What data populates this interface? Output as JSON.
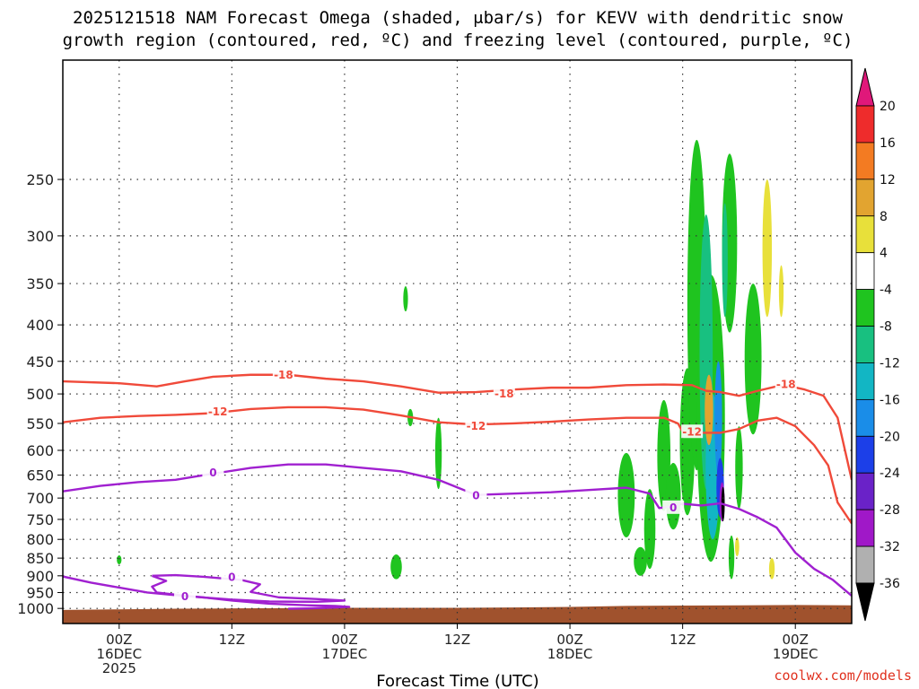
{
  "chart_data": {
    "type": "heatmap",
    "title_lines": [
      "2025121518 NAM Forecast Omega (shaded, μbar/s) for KEVV with dendritic snow",
      "growth region (contoured, red, ºC) and freezing level (contoured, purple, ºC)"
    ],
    "xlabel": "Forecast Time (UTC)",
    "ylabel": "",
    "y_axis": {
      "scale": "log-pressure",
      "inverted": true,
      "ylim": [
        1050,
        170
      ],
      "ticks": [
        250,
        300,
        350,
        400,
        450,
        500,
        550,
        600,
        650,
        700,
        750,
        800,
        850,
        900,
        950,
        1000
      ],
      "tick_labels": [
        "250",
        "300",
        "350",
        "400",
        "450",
        "500",
        "550",
        "600",
        "650",
        "700",
        "750",
        "800",
        "850",
        "900",
        "950",
        "1000"
      ]
    },
    "x_axis": {
      "unit": "hours since 2025121518",
      "xlim": [
        0,
        84
      ],
      "ticks": [
        6,
        18,
        30,
        42,
        54,
        66,
        78
      ],
      "tick_labels": [
        [
          "00Z",
          "16DEC",
          "2025"
        ],
        [
          "12Z"
        ],
        [
          "00Z",
          "17DEC"
        ],
        [
          "12Z"
        ],
        [
          "00Z",
          "18DEC"
        ],
        [
          "12Z"
        ],
        [
          "00Z",
          "19DEC"
        ]
      ]
    },
    "grid": true,
    "colorbar": {
      "labels": [
        "20",
        "16",
        "12",
        "8",
        "4",
        "-4",
        "-8",
        "-12",
        "-16",
        "-20",
        "-24",
        "-28",
        "-32",
        "-36"
      ],
      "bands": [
        {
          "from": 16,
          "to": 20,
          "color": "#ee2c2c"
        },
        {
          "from": 12,
          "to": 16,
          "color": "#f37b22"
        },
        {
          "from": 8,
          "to": 12,
          "color": "#e2a430"
        },
        {
          "from": 4,
          "to": 8,
          "color": "#e8e03a"
        },
        {
          "from": -4,
          "to": 4,
          "color": "#ffffff"
        },
        {
          "from": -8,
          "to": -4,
          "color": "#1fc41f"
        },
        {
          "from": -12,
          "to": -8,
          "color": "#18c080"
        },
        {
          "from": -16,
          "to": -12,
          "color": "#12b6c4"
        },
        {
          "from": -20,
          "to": -16,
          "color": "#1a8de8"
        },
        {
          "from": -24,
          "to": -20,
          "color": "#1c3fe8"
        },
        {
          "from": -28,
          "to": -24,
          "color": "#6a22c8"
        },
        {
          "from": -32,
          "to": -28,
          "color": "#a018c8"
        },
        {
          "from": -36,
          "to": -32,
          "color": "#b0b0b0"
        }
      ],
      "over_color": "#e0187a",
      "under_color": "#000000"
    },
    "series": [
      {
        "name": "-18",
        "color": "#f04a3a",
        "label_points": [
          [
            23.5,
            470
          ],
          [
            47,
            500
          ],
          [
            77,
            485
          ]
        ],
        "points": [
          [
            0,
            480
          ],
          [
            6,
            483
          ],
          [
            10,
            488
          ],
          [
            13,
            480
          ],
          [
            16,
            473
          ],
          [
            20,
            470
          ],
          [
            24,
            470
          ],
          [
            28,
            476
          ],
          [
            32,
            480
          ],
          [
            36,
            488
          ],
          [
            40,
            498
          ],
          [
            44,
            497
          ],
          [
            48,
            493
          ],
          [
            52,
            490
          ],
          [
            56,
            490
          ],
          [
            60,
            486
          ],
          [
            64,
            485
          ],
          [
            67,
            486
          ],
          [
            68.5,
            495
          ],
          [
            70,
            497
          ],
          [
            72,
            503
          ],
          [
            74,
            495
          ],
          [
            76,
            488
          ],
          [
            77.5,
            488
          ],
          [
            79,
            493
          ],
          [
            81,
            503
          ],
          [
            82.5,
            540
          ],
          [
            84,
            660
          ]
        ]
      },
      {
        "name": "-12",
        "color": "#f04a3a",
        "label_points": [
          [
            16.5,
            530
          ],
          [
            44,
            555
          ],
          [
            67,
            565
          ]
        ],
        "points": [
          [
            0,
            548
          ],
          [
            4,
            540
          ],
          [
            8,
            537
          ],
          [
            12,
            535
          ],
          [
            16,
            532
          ],
          [
            20,
            525
          ],
          [
            24,
            522
          ],
          [
            28,
            522
          ],
          [
            32,
            526
          ],
          [
            36,
            536
          ],
          [
            40,
            548
          ],
          [
            44,
            552
          ],
          [
            48,
            550
          ],
          [
            52,
            547
          ],
          [
            56,
            543
          ],
          [
            60,
            540
          ],
          [
            64,
            540
          ],
          [
            65.5,
            550
          ],
          [
            66,
            565
          ],
          [
            68,
            567
          ],
          [
            70,
            567
          ],
          [
            72,
            560
          ],
          [
            74,
            545
          ],
          [
            76,
            540
          ],
          [
            78,
            555
          ],
          [
            80,
            590
          ],
          [
            81.5,
            630
          ],
          [
            82.5,
            710
          ],
          [
            84,
            760
          ]
        ]
      },
      {
        "name": "0",
        "color": "#a020d0",
        "label_points": [
          [
            16,
            645
          ],
          [
            44,
            695
          ],
          [
            65,
            722
          ],
          [
            18,
            905
          ],
          [
            13,
            962
          ]
        ],
        "points": [
          [
            0,
            685
          ],
          [
            4,
            673
          ],
          [
            8,
            665
          ],
          [
            12,
            660
          ],
          [
            16,
            647
          ],
          [
            20,
            635
          ],
          [
            24,
            628
          ],
          [
            28,
            628
          ],
          [
            32,
            635
          ],
          [
            36,
            642
          ],
          [
            40,
            660
          ],
          [
            44,
            693
          ],
          [
            48,
            690
          ],
          [
            52,
            687
          ],
          [
            56,
            682
          ],
          [
            60,
            677
          ],
          [
            62.5,
            690
          ],
          [
            63.5,
            723
          ],
          [
            64.5,
            720
          ],
          [
            66,
            713
          ],
          [
            68,
            717
          ],
          [
            70,
            712
          ],
          [
            72,
            725
          ],
          [
            74,
            745
          ],
          [
            76,
            770
          ],
          [
            78,
            835
          ],
          [
            80,
            880
          ],
          [
            82,
            912
          ],
          [
            84,
            960
          ]
        ]
      },
      {
        "name": "0",
        "color": "#a020d0",
        "label_points": [],
        "points": [
          [
            0,
            902
          ],
          [
            3,
            920
          ],
          [
            6,
            935
          ],
          [
            9,
            950
          ],
          [
            12,
            958
          ],
          [
            15,
            965
          ],
          [
            18,
            975
          ],
          [
            22,
            985
          ],
          [
            26,
            990
          ],
          [
            29,
            992
          ],
          [
            30.5,
            995
          ],
          [
            29,
            997
          ],
          [
            26,
            1000
          ],
          [
            24,
            1001
          ]
        ]
      },
      {
        "name": "0",
        "color": "#a020d0",
        "label_points": [],
        "points": [
          [
            9.5,
            900
          ],
          [
            12,
            898
          ],
          [
            15,
            903
          ],
          [
            19,
            912
          ],
          [
            21,
            925
          ],
          [
            20,
            948
          ],
          [
            23,
            965
          ],
          [
            27,
            970
          ],
          [
            30,
            975
          ],
          [
            27,
            979
          ],
          [
            22,
            978
          ],
          [
            18,
            972
          ],
          [
            14,
            963
          ],
          [
            10,
            950
          ],
          [
            9.5,
            932
          ],
          [
            11,
            915
          ],
          [
            9.5,
            900
          ]
        ]
      }
    ]
  },
  "omega_cells": [
    {
      "t": 60.0,
      "p": 700,
      "w": 1.8,
      "h": 190,
      "color": "#1fc41f"
    },
    {
      "t": 62.5,
      "p": 780,
      "w": 1.2,
      "h": 200,
      "color": "#1fc41f"
    },
    {
      "t": 61.5,
      "p": 860,
      "w": 1.4,
      "h": 80,
      "color": "#1fc41f"
    },
    {
      "t": 64.0,
      "p": 620,
      "w": 1.4,
      "h": 220,
      "color": "#1fc41f"
    },
    {
      "t": 65.0,
      "p": 700,
      "w": 1.6,
      "h": 150,
      "color": "#1fc41f"
    },
    {
      "t": 66.5,
      "p": 600,
      "w": 1.6,
      "h": 280,
      "color": "#1fc41f"
    },
    {
      "t": 67.5,
      "p": 430,
      "w": 2.0,
      "h": 420,
      "color": "#1fc41f"
    },
    {
      "t": 69.0,
      "p": 600,
      "w": 3.0,
      "h": 520,
      "color": "#1fc41f"
    },
    {
      "t": 68.5,
      "p": 480,
      "w": 1.4,
      "h": 400,
      "color": "#18c080"
    },
    {
      "t": 69.2,
      "p": 650,
      "w": 1.5,
      "h": 300,
      "color": "#12b6c4"
    },
    {
      "t": 69.8,
      "p": 550,
      "w": 0.8,
      "h": 200,
      "color": "#1a8de8"
    },
    {
      "t": 70.0,
      "p": 680,
      "w": 0.8,
      "h": 130,
      "color": "#1c3fe8"
    },
    {
      "t": 70.2,
      "p": 710,
      "w": 0.55,
      "h": 90,
      "color": "#a018c8"
    },
    {
      "t": 70.3,
      "p": 715,
      "w": 0.35,
      "h": 80,
      "color": "#000000"
    },
    {
      "t": 71.0,
      "p": 320,
      "w": 1.6,
      "h": 180,
      "color": "#1fc41f"
    },
    {
      "t": 70.5,
      "p": 330,
      "w": 0.6,
      "h": 120,
      "color": "#18c080"
    },
    {
      "t": 73.5,
      "p": 460,
      "w": 1.8,
      "h": 220,
      "color": "#1fc41f"
    },
    {
      "t": 72.0,
      "p": 640,
      "w": 0.8,
      "h": 170,
      "color": "#1fc41f"
    },
    {
      "t": 71.2,
      "p": 850,
      "w": 0.6,
      "h": 120,
      "color": "#1fc41f"
    },
    {
      "t": 75.0,
      "p": 320,
      "w": 1.0,
      "h": 140,
      "color": "#e8e03a"
    },
    {
      "t": 76.5,
      "p": 360,
      "w": 0.5,
      "h": 60,
      "color": "#e8e03a"
    },
    {
      "t": 68.8,
      "p": 530,
      "w": 0.9,
      "h": 120,
      "color": "#e2a430"
    },
    {
      "t": 71.8,
      "p": 820,
      "w": 0.45,
      "h": 50,
      "color": "#e8e03a"
    },
    {
      "t": 75.5,
      "p": 880,
      "w": 0.6,
      "h": 60,
      "color": "#e8e03a"
    },
    {
      "t": 36.5,
      "p": 368,
      "w": 0.5,
      "h": 30,
      "color": "#1fc41f"
    },
    {
      "t": 37.0,
      "p": 540,
      "w": 0.6,
      "h": 30,
      "color": "#1fc41f"
    },
    {
      "t": 40.0,
      "p": 610,
      "w": 0.7,
      "h": 140,
      "color": "#1fc41f"
    },
    {
      "t": 35.5,
      "p": 875,
      "w": 1.2,
      "h": 70,
      "color": "#1fc41f"
    },
    {
      "t": 6.0,
      "p": 855,
      "w": 0.5,
      "h": 25,
      "color": "#1fc41f"
    }
  ],
  "terrain": {
    "color": "#a0522d",
    "points": [
      [
        0,
        1005
      ],
      [
        6,
        1003
      ],
      [
        12,
        1001
      ],
      [
        18,
        1000
      ],
      [
        24,
        999
      ],
      [
        30,
        998
      ],
      [
        36,
        998
      ],
      [
        42,
        998
      ],
      [
        48,
        997
      ],
      [
        54,
        995
      ],
      [
        60,
        992
      ],
      [
        66,
        991
      ],
      [
        72,
        990
      ],
      [
        78,
        989
      ],
      [
        84,
        990
      ]
    ]
  },
  "credit_text": "coolwx.com/models"
}
